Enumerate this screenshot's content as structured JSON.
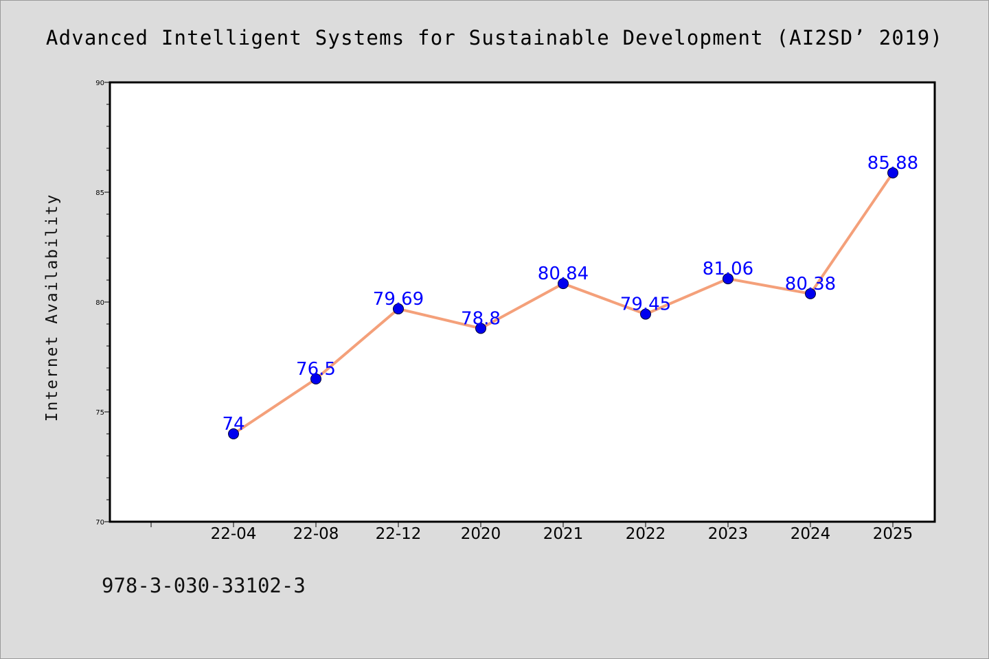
{
  "chart_data": {
    "type": "line",
    "title": "Advanced Intelligent Systems for Sustainable Development (AI2SD’ 2019)",
    "xlabel": "",
    "ylabel": "Internet Availability",
    "categories": [
      "22-04",
      "22-08",
      "22-12",
      "2020",
      "2021",
      "2022",
      "2023",
      "2024",
      "2025"
    ],
    "series": [
      {
        "values": [
          74,
          76.5,
          79.69,
          78.8,
          80.84,
          79.45,
          81.06,
          80.38,
          85.88
        ]
      }
    ],
    "data_labels": [
      "74",
      "76.5",
      "79.69",
      "78.8",
      "80.84",
      "79.45",
      "81.06",
      "80.38",
      "85.88"
    ],
    "ylim": [
      70,
      90
    ],
    "yticks": [
      70,
      75,
      80,
      85,
      90
    ],
    "grid": false,
    "colors": {
      "line": "#f4a07a",
      "marker": "#0000ee",
      "label": "#0000ff",
      "background": "#dcdcdc",
      "plot_area": "#ffffff"
    }
  },
  "footer": {
    "isbn": "978-3-030-33102-3"
  }
}
